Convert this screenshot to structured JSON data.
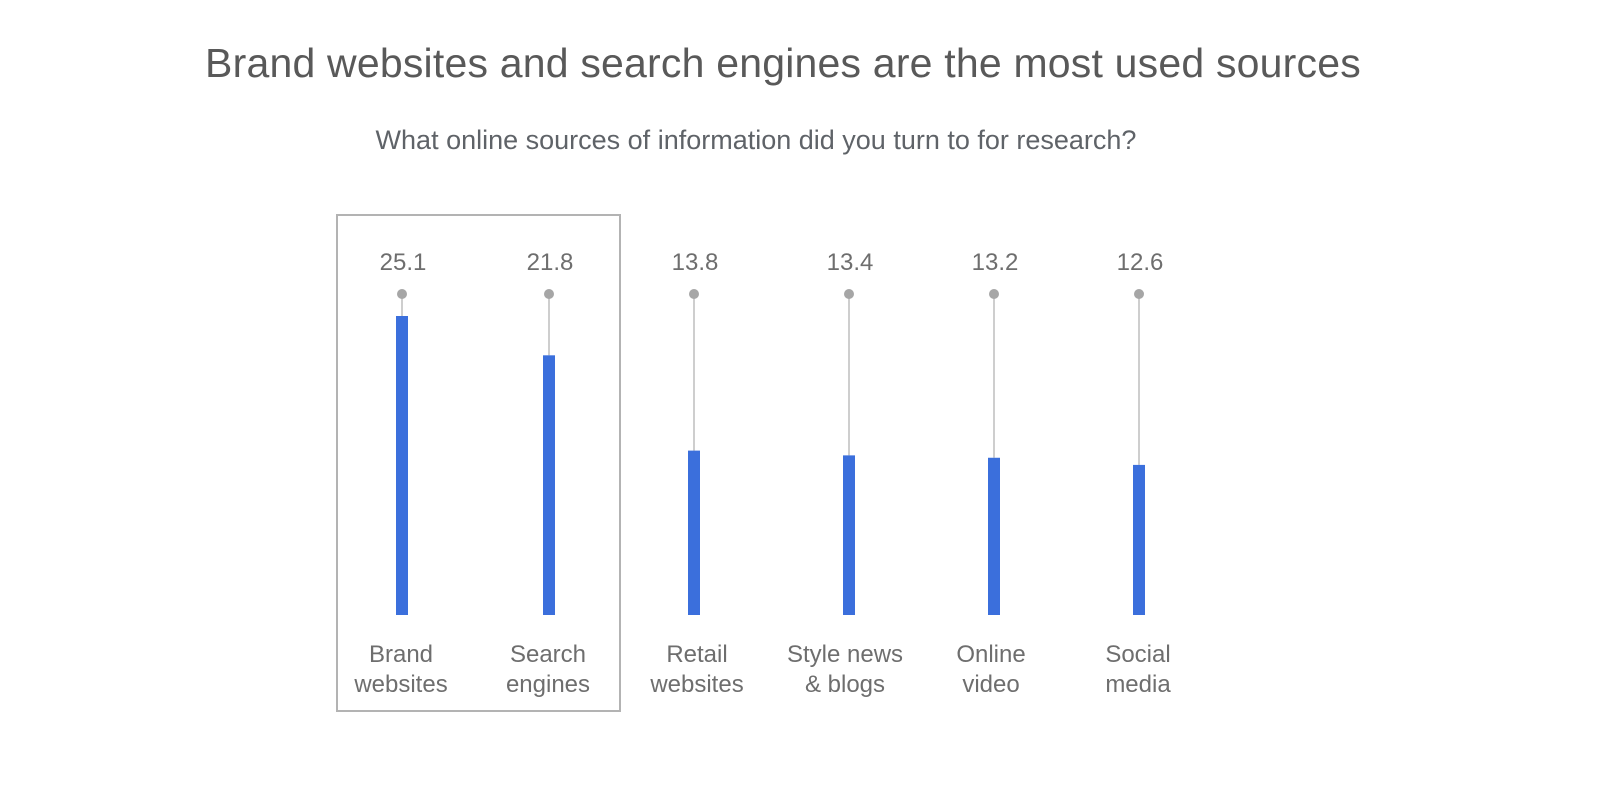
{
  "title": "Brand websites and search engines are the most used sources",
  "subtitle": "What online sources of information did you turn to for research?",
  "colors": {
    "bar": "#3b6fdc",
    "stem": "#bdbdbd",
    "marker": "#a6a6a6",
    "highlight_box": "#b3b3b3"
  },
  "chart_data": {
    "type": "bar",
    "title": "Brand websites and search engines are the most used sources",
    "subtitle": "What online sources of information did you turn to for research?",
    "categories": [
      [
        "Brand",
        "websites"
      ],
      [
        "Search",
        "engines"
      ],
      [
        "Retail",
        "websites"
      ],
      [
        "Style news",
        "& blogs"
      ],
      [
        "Online",
        "video"
      ],
      [
        "Social",
        "media"
      ]
    ],
    "values": [
      25.1,
      21.8,
      13.8,
      13.4,
      13.2,
      12.6
    ],
    "highlighted_categories": [
      0,
      1
    ],
    "grid": false,
    "legend": "none"
  }
}
